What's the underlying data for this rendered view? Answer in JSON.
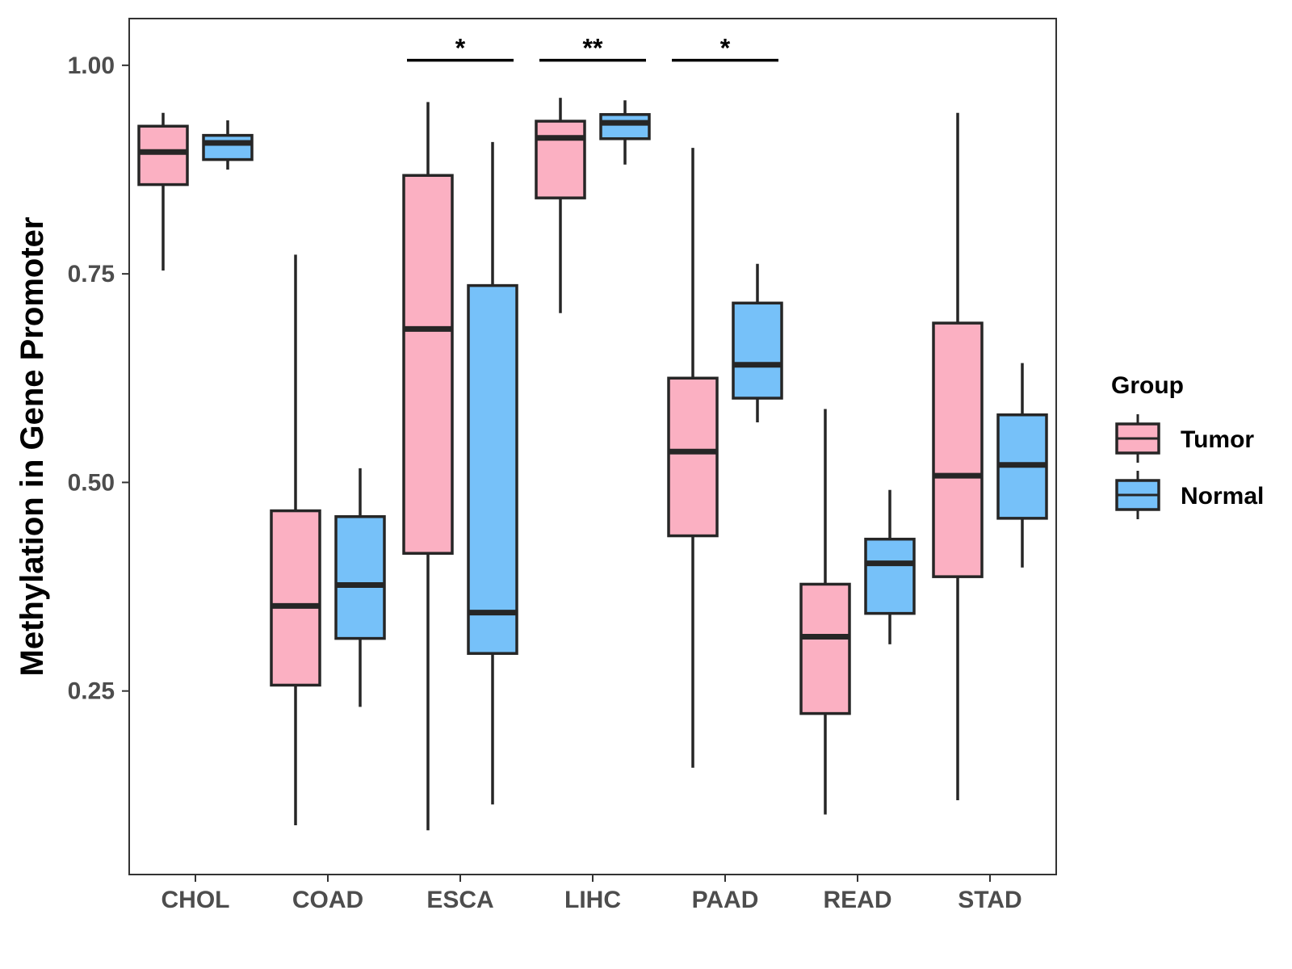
{
  "chart_data": {
    "type": "boxplot",
    "title": "",
    "xlabel": "",
    "ylabel": "Methylation in Gene Promoter",
    "ylim": [
      0.03,
      1.056
    ],
    "yticks": [
      0.25,
      0.5,
      0.75,
      1.0
    ],
    "ytick_labels": [
      "0.25",
      "0.50",
      "0.75",
      "1.00"
    ],
    "categories": [
      "CHOL",
      "COAD",
      "ESCA",
      "LIHC",
      "PAAD",
      "READ",
      "STAD"
    ],
    "legend": {
      "title": "Group",
      "position": "right"
    },
    "series": [
      {
        "name": "Tumor",
        "color": "#FBB0C2",
        "boxes": [
          {
            "whisker_low": 0.754,
            "q1": 0.857,
            "median": 0.896,
            "q3": 0.927,
            "whisker_high": 0.943
          },
          {
            "whisker_low": 0.089,
            "q1": 0.257,
            "median": 0.352,
            "q3": 0.466,
            "whisker_high": 0.773
          },
          {
            "whisker_low": 0.083,
            "q1": 0.415,
            "median": 0.684,
            "q3": 0.868,
            "whisker_high": 0.956
          },
          {
            "whisker_low": 0.703,
            "q1": 0.841,
            "median": 0.913,
            "q3": 0.933,
            "whisker_high": 0.961
          },
          {
            "whisker_low": 0.158,
            "q1": 0.436,
            "median": 0.537,
            "q3": 0.625,
            "whisker_high": 0.901
          },
          {
            "whisker_low": 0.102,
            "q1": 0.223,
            "median": 0.315,
            "q3": 0.378,
            "whisker_high": 0.588
          },
          {
            "whisker_low": 0.119,
            "q1": 0.387,
            "median": 0.508,
            "q3": 0.691,
            "whisker_high": 0.943
          }
        ]
      },
      {
        "name": "Normal",
        "color": "#76C1F9",
        "boxes": [
          {
            "whisker_low": 0.875,
            "q1": 0.887,
            "median": 0.907,
            "q3": 0.916,
            "whisker_high": 0.934
          },
          {
            "whisker_low": 0.231,
            "q1": 0.313,
            "median": 0.377,
            "q3": 0.459,
            "whisker_high": 0.517
          },
          {
            "whisker_low": 0.114,
            "q1": 0.295,
            "median": 0.344,
            "q3": 0.736,
            "whisker_high": 0.908
          },
          {
            "whisker_low": 0.881,
            "q1": 0.912,
            "median": 0.931,
            "q3": 0.941,
            "whisker_high": 0.958
          },
          {
            "whisker_low": 0.572,
            "q1": 0.601,
            "median": 0.641,
            "q3": 0.715,
            "whisker_high": 0.762
          },
          {
            "whisker_low": 0.306,
            "q1": 0.343,
            "median": 0.403,
            "q3": 0.432,
            "whisker_high": 0.491
          },
          {
            "whisker_low": 0.398,
            "q1": 0.457,
            "median": 0.521,
            "q3": 0.581,
            "whisker_high": 0.643
          }
        ]
      }
    ],
    "annotations": [
      {
        "category": "ESCA",
        "label": "*",
        "y": 1.006
      },
      {
        "category": "LIHC",
        "label": "**",
        "y": 1.006
      },
      {
        "category": "PAAD",
        "label": "*",
        "y": 1.006
      }
    ]
  }
}
